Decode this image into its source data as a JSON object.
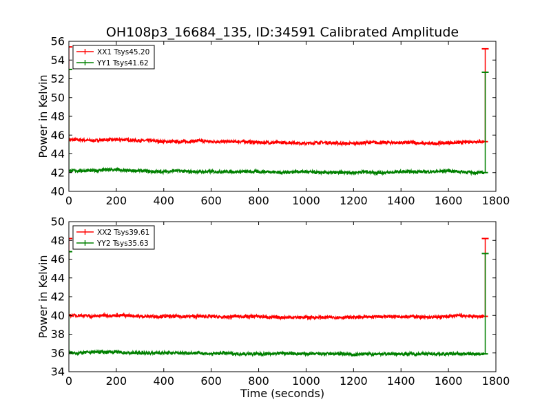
{
  "figure": {
    "title": "OH108p3_16684_135, ID:34591 Calibrated Amplitude"
  },
  "colors": {
    "red": "#ff0000",
    "green": "#008000"
  },
  "chart_data": [
    {
      "type": "line",
      "title": "OH108p3_16684_135, ID:34591 Calibrated Amplitude",
      "xlabel": "",
      "ylabel": "Power in Kelvin",
      "xlim": [
        0,
        1800
      ],
      "ylim": [
        40,
        56
      ],
      "xticks": [
        0,
        200,
        400,
        600,
        800,
        1000,
        1200,
        1400,
        1600,
        1800
      ],
      "xtick_labels": [
        "0",
        "200",
        "400",
        "600",
        "800",
        "1000",
        "1200",
        "1400",
        "1600",
        "1800"
      ],
      "yticks": [
        40,
        42,
        44,
        46,
        48,
        50,
        52,
        54,
        56
      ],
      "ytick_labels": [
        "40",
        "42",
        "44",
        "46",
        "48",
        "50",
        "52",
        "54",
        "56"
      ],
      "legend": "top-left",
      "grid": false,
      "series": [
        {
          "name": "XX1 Tsys45.20",
          "color": "#ff0000",
          "x": [
            0,
            50,
            100,
            150,
            200,
            250,
            300,
            350,
            400,
            450,
            500,
            550,
            600,
            650,
            700,
            750,
            800,
            850,
            900,
            950,
            1000,
            1050,
            1100,
            1150,
            1200,
            1250,
            1300,
            1350,
            1400,
            1450,
            1500,
            1550,
            1600,
            1650,
            1700,
            1750
          ],
          "y": [
            45.5,
            45.5,
            45.4,
            45.5,
            45.5,
            45.5,
            45.4,
            45.4,
            45.3,
            45.3,
            45.3,
            45.4,
            45.3,
            45.3,
            45.3,
            45.3,
            45.2,
            45.2,
            45.2,
            45.2,
            45.1,
            45.2,
            45.2,
            45.1,
            45.1,
            45.2,
            45.2,
            45.2,
            45.2,
            45.2,
            45.1,
            45.1,
            45.2,
            45.2,
            45.3,
            45.3
          ],
          "spikes": [
            {
              "x": 0,
              "y": 55.4
            },
            {
              "x": 1755,
              "y": 55.2
            }
          ]
        },
        {
          "name": "YY1 Tsys41.62",
          "color": "#008000",
          "x": [
            0,
            50,
            100,
            150,
            200,
            250,
            300,
            350,
            400,
            450,
            500,
            550,
            600,
            650,
            700,
            750,
            800,
            850,
            900,
            950,
            1000,
            1050,
            1100,
            1150,
            1200,
            1250,
            1300,
            1350,
            1400,
            1450,
            1500,
            1550,
            1600,
            1650,
            1700,
            1750
          ],
          "y": [
            42.2,
            42.2,
            42.2,
            42.3,
            42.3,
            42.2,
            42.2,
            42.1,
            42.1,
            42.2,
            42.1,
            42.1,
            42.1,
            42.1,
            42.1,
            42.1,
            42.1,
            42.1,
            42.0,
            42.1,
            42.1,
            42.0,
            42.0,
            42.0,
            42.0,
            42.1,
            42.0,
            42.0,
            42.1,
            42.1,
            42.1,
            42.1,
            42.2,
            42.1,
            42.0,
            42.0
          ],
          "spikes": [
            {
              "x": 0,
              "y": 53.0
            },
            {
              "x": 1755,
              "y": 52.7
            }
          ]
        }
      ]
    },
    {
      "type": "line",
      "title": "",
      "xlabel": "Time (seconds)",
      "ylabel": "Power in Kelvin",
      "xlim": [
        0,
        1800
      ],
      "ylim": [
        34,
        50
      ],
      "xticks": [
        0,
        200,
        400,
        600,
        800,
        1000,
        1200,
        1400,
        1600,
        1800
      ],
      "xtick_labels": [
        "0",
        "200",
        "400",
        "600",
        "800",
        "1000",
        "1200",
        "1400",
        "1600",
        "1800"
      ],
      "yticks": [
        34,
        36,
        38,
        40,
        42,
        44,
        46,
        48,
        50
      ],
      "ytick_labels": [
        "34",
        "36",
        "38",
        "40",
        "42",
        "44",
        "46",
        "48",
        "50"
      ],
      "legend": "top-left",
      "grid": false,
      "series": [
        {
          "name": "XX2 Tsys39.61",
          "color": "#ff0000",
          "x": [
            0,
            50,
            100,
            150,
            200,
            250,
            300,
            350,
            400,
            450,
            500,
            550,
            600,
            650,
            700,
            750,
            800,
            850,
            900,
            950,
            1000,
            1050,
            1100,
            1150,
            1200,
            1250,
            1300,
            1350,
            1400,
            1450,
            1500,
            1550,
            1600,
            1650,
            1700,
            1750
          ],
          "y": [
            40.0,
            40.0,
            39.9,
            40.0,
            40.0,
            40.0,
            39.9,
            39.9,
            39.9,
            39.9,
            39.9,
            39.9,
            39.9,
            39.8,
            39.9,
            39.9,
            39.9,
            39.8,
            39.8,
            39.8,
            39.8,
            39.8,
            39.8,
            39.8,
            39.8,
            39.8,
            39.9,
            39.9,
            39.9,
            39.9,
            39.8,
            39.8,
            39.9,
            40.0,
            39.9,
            39.9
          ],
          "spikes": [
            {
              "x": 0,
              "y": 48.2
            },
            {
              "x": 1755,
              "y": 48.2
            }
          ]
        },
        {
          "name": "YY2 Tsys35.63",
          "color": "#008000",
          "x": [
            0,
            50,
            100,
            150,
            200,
            250,
            300,
            350,
            400,
            450,
            500,
            550,
            600,
            650,
            700,
            750,
            800,
            850,
            900,
            950,
            1000,
            1050,
            1100,
            1150,
            1200,
            1250,
            1300,
            1350,
            1400,
            1450,
            1500,
            1550,
            1600,
            1650,
            1700,
            1750
          ],
          "y": [
            36.0,
            36.0,
            36.1,
            36.1,
            36.1,
            36.0,
            36.0,
            36.0,
            36.0,
            36.0,
            36.0,
            36.0,
            35.9,
            36.0,
            35.9,
            35.9,
            35.9,
            35.9,
            36.0,
            35.9,
            35.9,
            35.9,
            35.9,
            35.9,
            35.8,
            35.9,
            35.9,
            35.9,
            35.9,
            35.9,
            35.9,
            35.9,
            35.9,
            35.9,
            35.9,
            35.9
          ],
          "spikes": [
            {
              "x": 0,
              "y": 46.8
            },
            {
              "x": 1755,
              "y": 46.6
            }
          ]
        }
      ]
    }
  ]
}
